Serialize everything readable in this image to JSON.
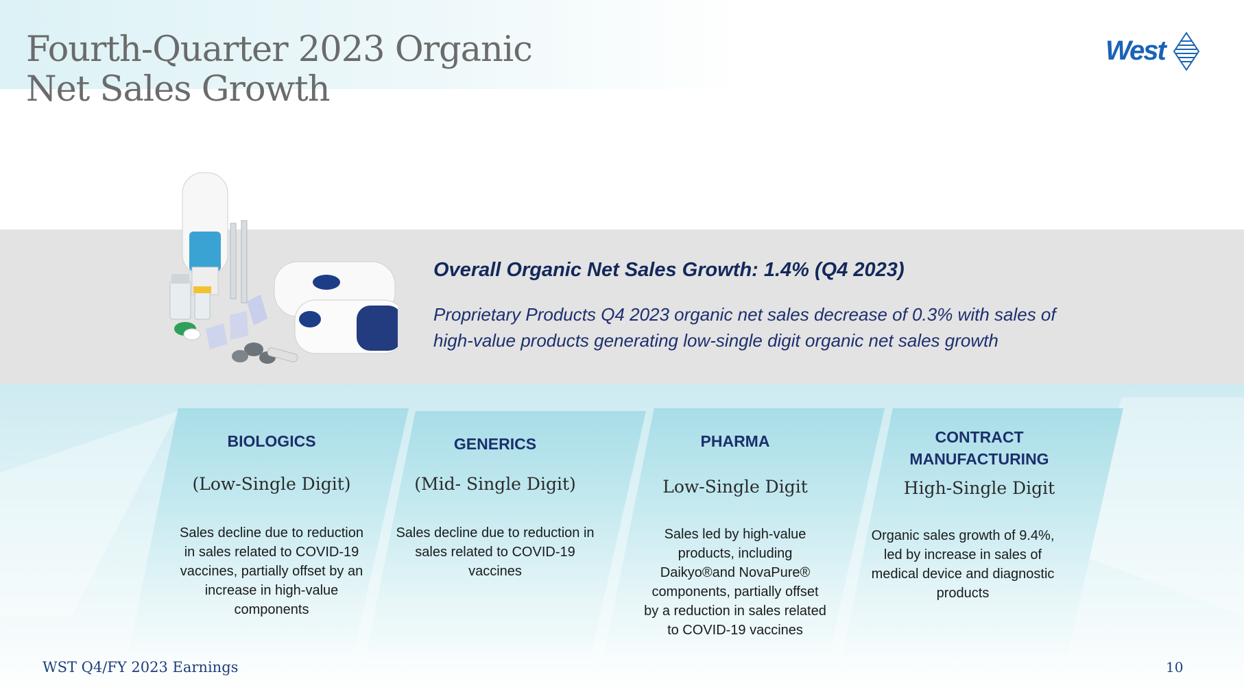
{
  "slide": {
    "title_line1": "Fourth-Quarter 2023 Organic",
    "title_line2": "Net Sales Growth",
    "logo_text": "West",
    "headline": "Overall Organic Net Sales Growth: 1.4% (Q4 2023)",
    "subline_line1": "Proprietary Products Q4 2023 organic net sales decrease of 0.3% with sales of",
    "subline_line2": "high-value products generating low-single digit organic net sales growth"
  },
  "cards": [
    {
      "title": "BIOLOGICS",
      "growth": "(Low-Single Digit)",
      "desc": [
        "Sales decline due to reduction",
        "in sales related to COVID-19",
        "vaccines, partially offset by an",
        "increase in high-value",
        "components"
      ]
    },
    {
      "title": "GENERICS",
      "growth": "(Mid- Single Digit)",
      "desc": [
        "Sales decline due to reduction in",
        "sales related to COVID-19",
        "vaccines"
      ]
    },
    {
      "title": "PHARMA",
      "growth": "Low-Single Digit",
      "desc": [
        "Sales led by high-value",
        "products, including",
        "Daikyo®and NovaPure®",
        "components, partially offset",
        "by a reduction in sales related",
        "to COVID-19 vaccines"
      ]
    },
    {
      "title_line1": "CONTRACT",
      "title_line2": "MANUFACTURING",
      "growth": "High-Single Digit",
      "desc": [
        "Organic sales growth of 9.4%,",
        "led by increase in sales of",
        "medical device and diagnostic",
        "products"
      ]
    }
  ],
  "footer": {
    "left": "WST Q4/FY 2023 Earnings",
    "page_number": "10"
  },
  "colors": {
    "title_grey": "#6b6b6b",
    "navy": "#13285b",
    "logo_blue": "#1a63b7",
    "band_grey": "#e3e3e3",
    "card_teal": "#a8dde7"
  }
}
